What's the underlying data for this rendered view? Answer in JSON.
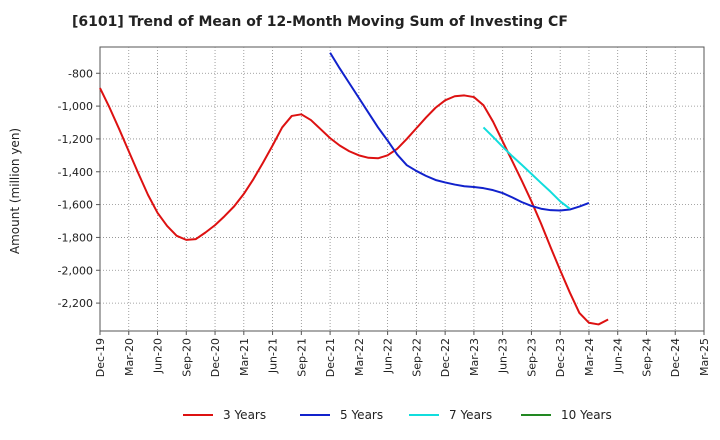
{
  "chart_data": {
    "type": "line",
    "title": "[6101]  Trend of Mean of 12-Month Moving Sum of Investing CF",
    "xlabel": "",
    "ylabel": "Amount (million yen)",
    "ylim": [
      -2370,
      -640
    ],
    "yticks": [
      -800,
      -1000,
      -1200,
      -1400,
      -1600,
      -1800,
      -2000,
      -2200
    ],
    "ytick_labels": [
      "-800",
      "-1,000",
      "-1,200",
      "-1,400",
      "-1,600",
      "-1,800",
      "-2,000",
      "-2,200"
    ],
    "x_tick_labels": [
      "Dec-19",
      "Mar-20",
      "Jun-20",
      "Sep-20",
      "Dec-20",
      "Mar-21",
      "Jun-21",
      "Sep-21",
      "Dec-21",
      "Mar-22",
      "Jun-22",
      "Sep-22",
      "Dec-22",
      "Mar-23",
      "Jun-23",
      "Sep-23",
      "Dec-23",
      "Mar-24",
      "Jun-24",
      "Sep-24",
      "Dec-24",
      "Mar-25"
    ],
    "grid": true,
    "legend_position": "bottom",
    "series": [
      {
        "name": "3 Years",
        "color": "#dd1111",
        "start_index": 0,
        "values": [
          -890,
          -1010,
          -1140,
          -1275,
          -1410,
          -1540,
          -1650,
          -1730,
          -1790,
          -1815,
          -1810,
          -1770,
          -1725,
          -1670,
          -1610,
          -1535,
          -1445,
          -1345,
          -1240,
          -1130,
          -1060,
          -1050,
          -1085,
          -1140,
          -1195,
          -1240,
          -1275,
          -1300,
          -1315,
          -1318,
          -1300,
          -1260,
          -1200,
          -1135,
          -1070,
          -1010,
          -965,
          -940,
          -935,
          -945,
          -995,
          -1095,
          -1215,
          -1335,
          -1455,
          -1580,
          -1715,
          -1860,
          -2000,
          -2135,
          -2260,
          -2320,
          -2330,
          -2300
        ]
      },
      {
        "name": "5 Years",
        "color": "#1122cc",
        "start_index": 24,
        "values": [
          -675,
          -770,
          -860,
          -950,
          -1040,
          -1130,
          -1210,
          -1295,
          -1360,
          -1395,
          -1425,
          -1450,
          -1465,
          -1478,
          -1488,
          -1493,
          -1500,
          -1512,
          -1530,
          -1556,
          -1585,
          -1608,
          -1625,
          -1634,
          -1636,
          -1630,
          -1612,
          -1590
        ]
      },
      {
        "name": "7 Years",
        "color": "#11dddd",
        "start_index": 40,
        "values": [
          -1130,
          -1188,
          -1248,
          -1305,
          -1358,
          -1413,
          -1468,
          -1522,
          -1580,
          -1625
        ]
      },
      {
        "name": "10 Years",
        "color": "#228822",
        "start_index": 0,
        "values": []
      }
    ]
  }
}
